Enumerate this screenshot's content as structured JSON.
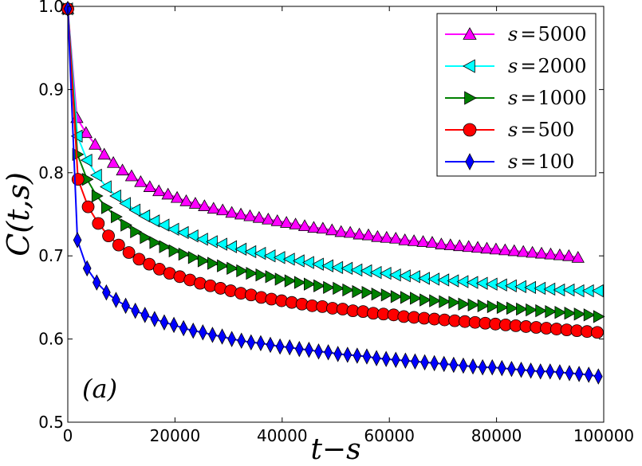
{
  "chart_data": {
    "type": "line",
    "title": "",
    "xlabel": "t−s",
    "ylabel": "C(t,s)",
    "xlim": [
      0,
      100000
    ],
    "ylim": [
      0.5,
      1.0
    ],
    "xticks": [
      0,
      20000,
      40000,
      60000,
      80000,
      100000
    ],
    "xtick_labels": [
      "0",
      "20000",
      "40000",
      "60000",
      "80000",
      "100000"
    ],
    "yticks": [
      0.5,
      0.6,
      0.7,
      0.8,
      0.9,
      1.0
    ],
    "ytick_labels": [
      "0.5",
      "0.6",
      "0.7",
      "0.8",
      "0.9",
      "1.0"
    ],
    "grid": false,
    "legend_position": "top-right",
    "annotation": "(a)",
    "series": [
      {
        "name": "s=5000",
        "legend_var": "s",
        "legend_eq": "=",
        "legend_val": "5000",
        "color": "#ff00ff",
        "marker": "triangle-up",
        "x": [
          0,
          1700,
          3400,
          5100,
          6800,
          8500,
          10200,
          11900,
          13600,
          15300,
          17000,
          18700,
          20400,
          22100,
          23800,
          25500,
          27200,
          28900,
          30600,
          32300,
          34000,
          35700,
          37400,
          39100,
          40800,
          42500,
          44200,
          45900,
          47600,
          49300,
          51000,
          52700,
          54400,
          56100,
          57800,
          59500,
          61200,
          62900,
          64600,
          66300,
          68000,
          69700,
          71400,
          73100,
          74800,
          76500,
          78200,
          79900,
          81600,
          83300,
          85000,
          86700,
          88400,
          90100,
          91800,
          93500,
          95200
        ],
        "y": [
          0.997,
          0.866,
          0.848,
          0.834,
          0.822,
          0.812,
          0.803,
          0.796,
          0.789,
          0.783,
          0.778,
          0.774,
          0.77,
          0.766,
          0.763,
          0.76,
          0.757,
          0.755,
          0.752,
          0.75,
          0.748,
          0.746,
          0.744,
          0.742,
          0.74,
          0.738,
          0.736,
          0.734,
          0.733,
          0.731,
          0.729,
          0.728,
          0.726,
          0.725,
          0.723,
          0.722,
          0.721,
          0.719,
          0.718,
          0.717,
          0.716,
          0.714,
          0.713,
          0.712,
          0.711,
          0.71,
          0.709,
          0.708,
          0.707,
          0.706,
          0.705,
          0.704,
          0.703,
          0.702,
          0.701,
          0.7,
          0.698
        ]
      },
      {
        "name": "s=2000",
        "legend_var": "s",
        "legend_eq": "=",
        "legend_val": "2000",
        "color": "#00ffff",
        "marker": "triangle-left",
        "x": [
          0,
          1800,
          3600,
          5400,
          7200,
          9000,
          10800,
          12600,
          14400,
          16200,
          18000,
          19800,
          21600,
          23400,
          25200,
          27000,
          28800,
          30600,
          32400,
          34200,
          36000,
          37800,
          39600,
          41400,
          43200,
          45000,
          46800,
          48600,
          50400,
          52200,
          54000,
          55800,
          57600,
          59400,
          61200,
          63000,
          64800,
          66600,
          68400,
          70200,
          72000,
          73800,
          75600,
          77400,
          79200,
          81000,
          82800,
          84600,
          86400,
          88200,
          90000,
          91800,
          93600,
          95400,
          97200,
          99000
        ],
        "y": [
          0.997,
          0.844,
          0.815,
          0.797,
          0.783,
          0.772,
          0.763,
          0.755,
          0.748,
          0.742,
          0.737,
          0.732,
          0.728,
          0.724,
          0.72,
          0.717,
          0.714,
          0.711,
          0.708,
          0.705,
          0.703,
          0.7,
          0.698,
          0.696,
          0.694,
          0.692,
          0.69,
          0.688,
          0.686,
          0.685,
          0.683,
          0.682,
          0.68,
          0.679,
          0.677,
          0.676,
          0.675,
          0.673,
          0.672,
          0.671,
          0.67,
          0.669,
          0.668,
          0.667,
          0.666,
          0.665,
          0.664,
          0.663,
          0.662,
          0.661,
          0.66,
          0.659,
          0.659,
          0.658,
          0.658,
          0.658
        ]
      },
      {
        "name": "s=1000",
        "legend_var": "s",
        "legend_eq": "=",
        "legend_val": "1000",
        "color": "#008000",
        "marker": "triangle-right",
        "x": [
          0,
          1800,
          3600,
          5400,
          7200,
          9000,
          10800,
          12600,
          14400,
          16200,
          18000,
          19800,
          21600,
          23400,
          25200,
          27000,
          28800,
          30600,
          32400,
          34200,
          36000,
          37800,
          39600,
          41400,
          43200,
          45000,
          46800,
          48600,
          50400,
          52200,
          54000,
          55800,
          57600,
          59400,
          61200,
          63000,
          64800,
          66600,
          68400,
          70200,
          72000,
          73800,
          75600,
          77400,
          79200,
          81000,
          82800,
          84600,
          86400,
          88200,
          90000,
          91800,
          93600,
          95400,
          97200,
          99000
        ],
        "y": [
          0.997,
          0.822,
          0.792,
          0.772,
          0.758,
          0.747,
          0.737,
          0.729,
          0.722,
          0.716,
          0.711,
          0.706,
          0.702,
          0.698,
          0.694,
          0.691,
          0.688,
          0.685,
          0.682,
          0.679,
          0.677,
          0.675,
          0.672,
          0.67,
          0.668,
          0.666,
          0.664,
          0.662,
          0.661,
          0.659,
          0.657,
          0.656,
          0.654,
          0.653,
          0.651,
          0.65,
          0.649,
          0.647,
          0.646,
          0.645,
          0.644,
          0.642,
          0.641,
          0.64,
          0.639,
          0.638,
          0.637,
          0.636,
          0.635,
          0.634,
          0.633,
          0.632,
          0.631,
          0.63,
          0.629,
          0.627
        ]
      },
      {
        "name": "s=500",
        "legend_var": "s",
        "legend_eq": "=",
        "legend_val": "500",
        "color": "#ff0000",
        "marker": "circle",
        "x": [
          0,
          1900,
          3800,
          5700,
          7600,
          9500,
          11400,
          13300,
          15200,
          17100,
          19000,
          20900,
          22800,
          24700,
          26600,
          28500,
          30400,
          32300,
          34200,
          36100,
          38000,
          39900,
          41800,
          43700,
          45600,
          47500,
          49400,
          51300,
          53200,
          55100,
          57000,
          58900,
          60800,
          62700,
          64600,
          66500,
          68400,
          70300,
          72200,
          74100,
          76000,
          77900,
          79800,
          81700,
          83600,
          85500,
          87400,
          89300,
          91200,
          93100,
          95000,
          96900,
          98800
        ],
        "y": [
          0.997,
          0.792,
          0.759,
          0.739,
          0.724,
          0.713,
          0.704,
          0.696,
          0.69,
          0.684,
          0.679,
          0.675,
          0.671,
          0.667,
          0.664,
          0.661,
          0.658,
          0.655,
          0.653,
          0.65,
          0.648,
          0.646,
          0.644,
          0.642,
          0.64,
          0.639,
          0.637,
          0.636,
          0.634,
          0.633,
          0.631,
          0.63,
          0.629,
          0.627,
          0.626,
          0.625,
          0.624,
          0.623,
          0.622,
          0.621,
          0.62,
          0.619,
          0.618,
          0.617,
          0.616,
          0.615,
          0.614,
          0.613,
          0.612,
          0.611,
          0.61,
          0.609,
          0.608
        ]
      },
      {
        "name": "s=100",
        "legend_var": "s",
        "legend_eq": "=",
        "legend_val": "100",
        "color": "#0000ff",
        "marker": "diamond",
        "x": [
          0,
          1800,
          3600,
          5400,
          7200,
          9000,
          10800,
          12600,
          14400,
          16200,
          18000,
          19800,
          21600,
          23400,
          25200,
          27000,
          28800,
          30600,
          32400,
          34200,
          36000,
          37800,
          39600,
          41400,
          43200,
          45000,
          46800,
          48600,
          50400,
          52200,
          54000,
          55800,
          57600,
          59400,
          61200,
          63000,
          64800,
          66600,
          68400,
          70200,
          72000,
          73800,
          75600,
          77400,
          79200,
          81000,
          82800,
          84600,
          86400,
          88200,
          90000,
          91800,
          93600,
          95400,
          97200,
          99000
        ],
        "y": [
          0.997,
          0.719,
          0.685,
          0.668,
          0.656,
          0.647,
          0.64,
          0.634,
          0.629,
          0.624,
          0.62,
          0.617,
          0.613,
          0.61,
          0.608,
          0.605,
          0.603,
          0.6,
          0.598,
          0.596,
          0.595,
          0.593,
          0.591,
          0.59,
          0.588,
          0.587,
          0.585,
          0.584,
          0.582,
          0.581,
          0.58,
          0.579,
          0.577,
          0.576,
          0.575,
          0.574,
          0.573,
          0.572,
          0.571,
          0.57,
          0.569,
          0.568,
          0.567,
          0.566,
          0.566,
          0.565,
          0.564,
          0.563,
          0.562,
          0.561,
          0.561,
          0.56,
          0.559,
          0.558,
          0.557,
          0.555
        ]
      }
    ]
  }
}
